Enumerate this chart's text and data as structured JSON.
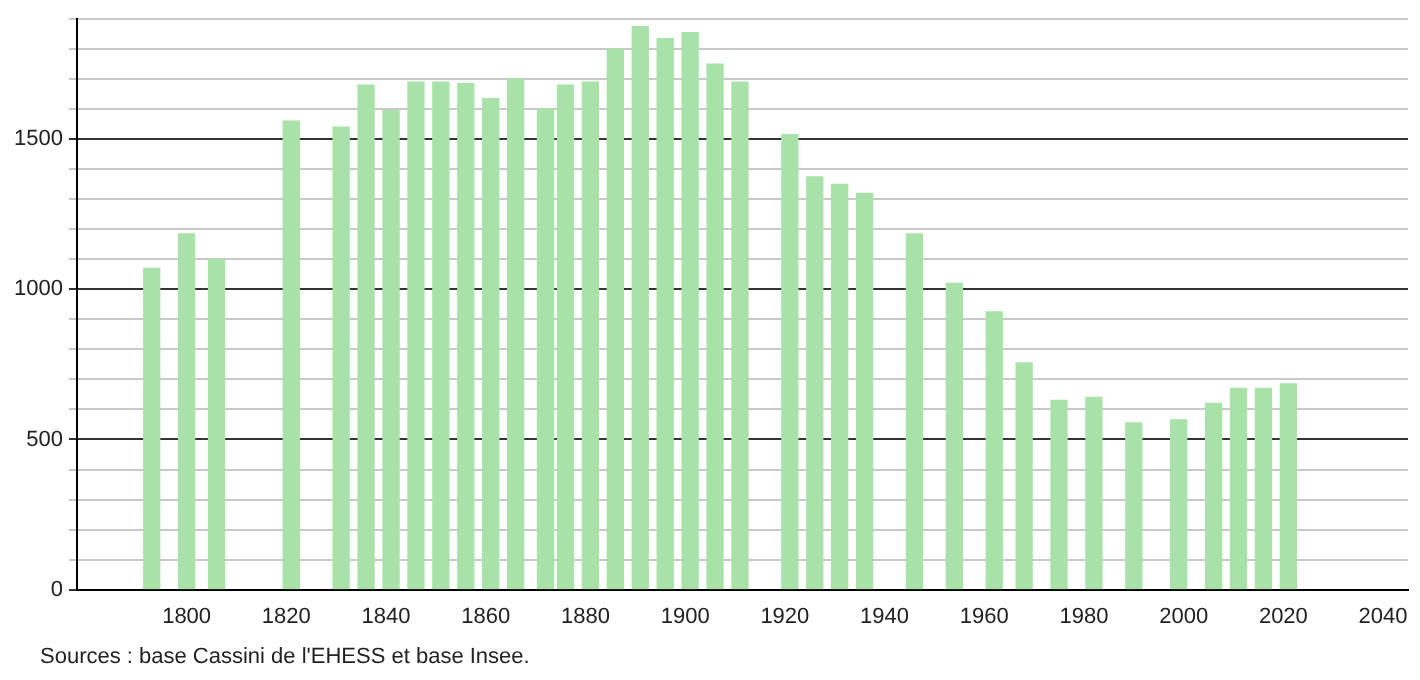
{
  "chart_data": {
    "type": "bar",
    "x": [
      1793,
      1800,
      1806,
      1821,
      1831,
      1836,
      1841,
      1846,
      1851,
      1856,
      1861,
      1866,
      1872,
      1876,
      1881,
      1886,
      1891,
      1896,
      1901,
      1906,
      1911,
      1921,
      1926,
      1931,
      1936,
      1946,
      1954,
      1962,
      1968,
      1975,
      1982,
      1990,
      1999,
      2006,
      2011,
      2016,
      2021
    ],
    "values": [
      1070,
      1185,
      1100,
      1560,
      1540,
      1680,
      1595,
      1690,
      1690,
      1685,
      1635,
      1700,
      1600,
      1680,
      1690,
      1800,
      1875,
      1835,
      1855,
      1750,
      1690,
      1515,
      1375,
      1350,
      1320,
      1185,
      1020,
      925,
      755,
      630,
      640,
      555,
      565,
      620,
      670,
      670,
      685
    ],
    "color": "#a8e2a8",
    "xlim": [
      1778,
      2045
    ],
    "xticks": [
      1800,
      1820,
      1840,
      1860,
      1880,
      1900,
      1920,
      1940,
      1960,
      1980,
      2000,
      2020,
      2040
    ],
    "ylim": [
      0,
      1900
    ],
    "yticks": [
      0,
      {
        "value": 100,
        "label": null
      },
      {
        "value": 200,
        "label": null
      },
      {
        "value": 300,
        "label": null
      },
      {
        "value": 400,
        "label": null
      },
      500,
      {
        "value": 600,
        "label": null
      },
      {
        "value": 700,
        "label": null
      },
      {
        "value": 800,
        "label": null
      },
      {
        "value": 900,
        "label": null
      },
      1000,
      {
        "value": 1100,
        "label": null
      },
      {
        "value": 1200,
        "label": null
      },
      {
        "value": 1300,
        "label": null
      },
      {
        "value": 1400,
        "label": null
      },
      1500,
      {
        "value": 1600,
        "label": null
      },
      {
        "value": 1700,
        "label": null
      },
      {
        "value": 1800,
        "label": null
      },
      {
        "value": 1900,
        "label": null
      }
    ],
    "grid": "y",
    "legend": false,
    "annotations": [
      "Sources : base Cassini de l'EHESS et base Insee."
    ]
  }
}
